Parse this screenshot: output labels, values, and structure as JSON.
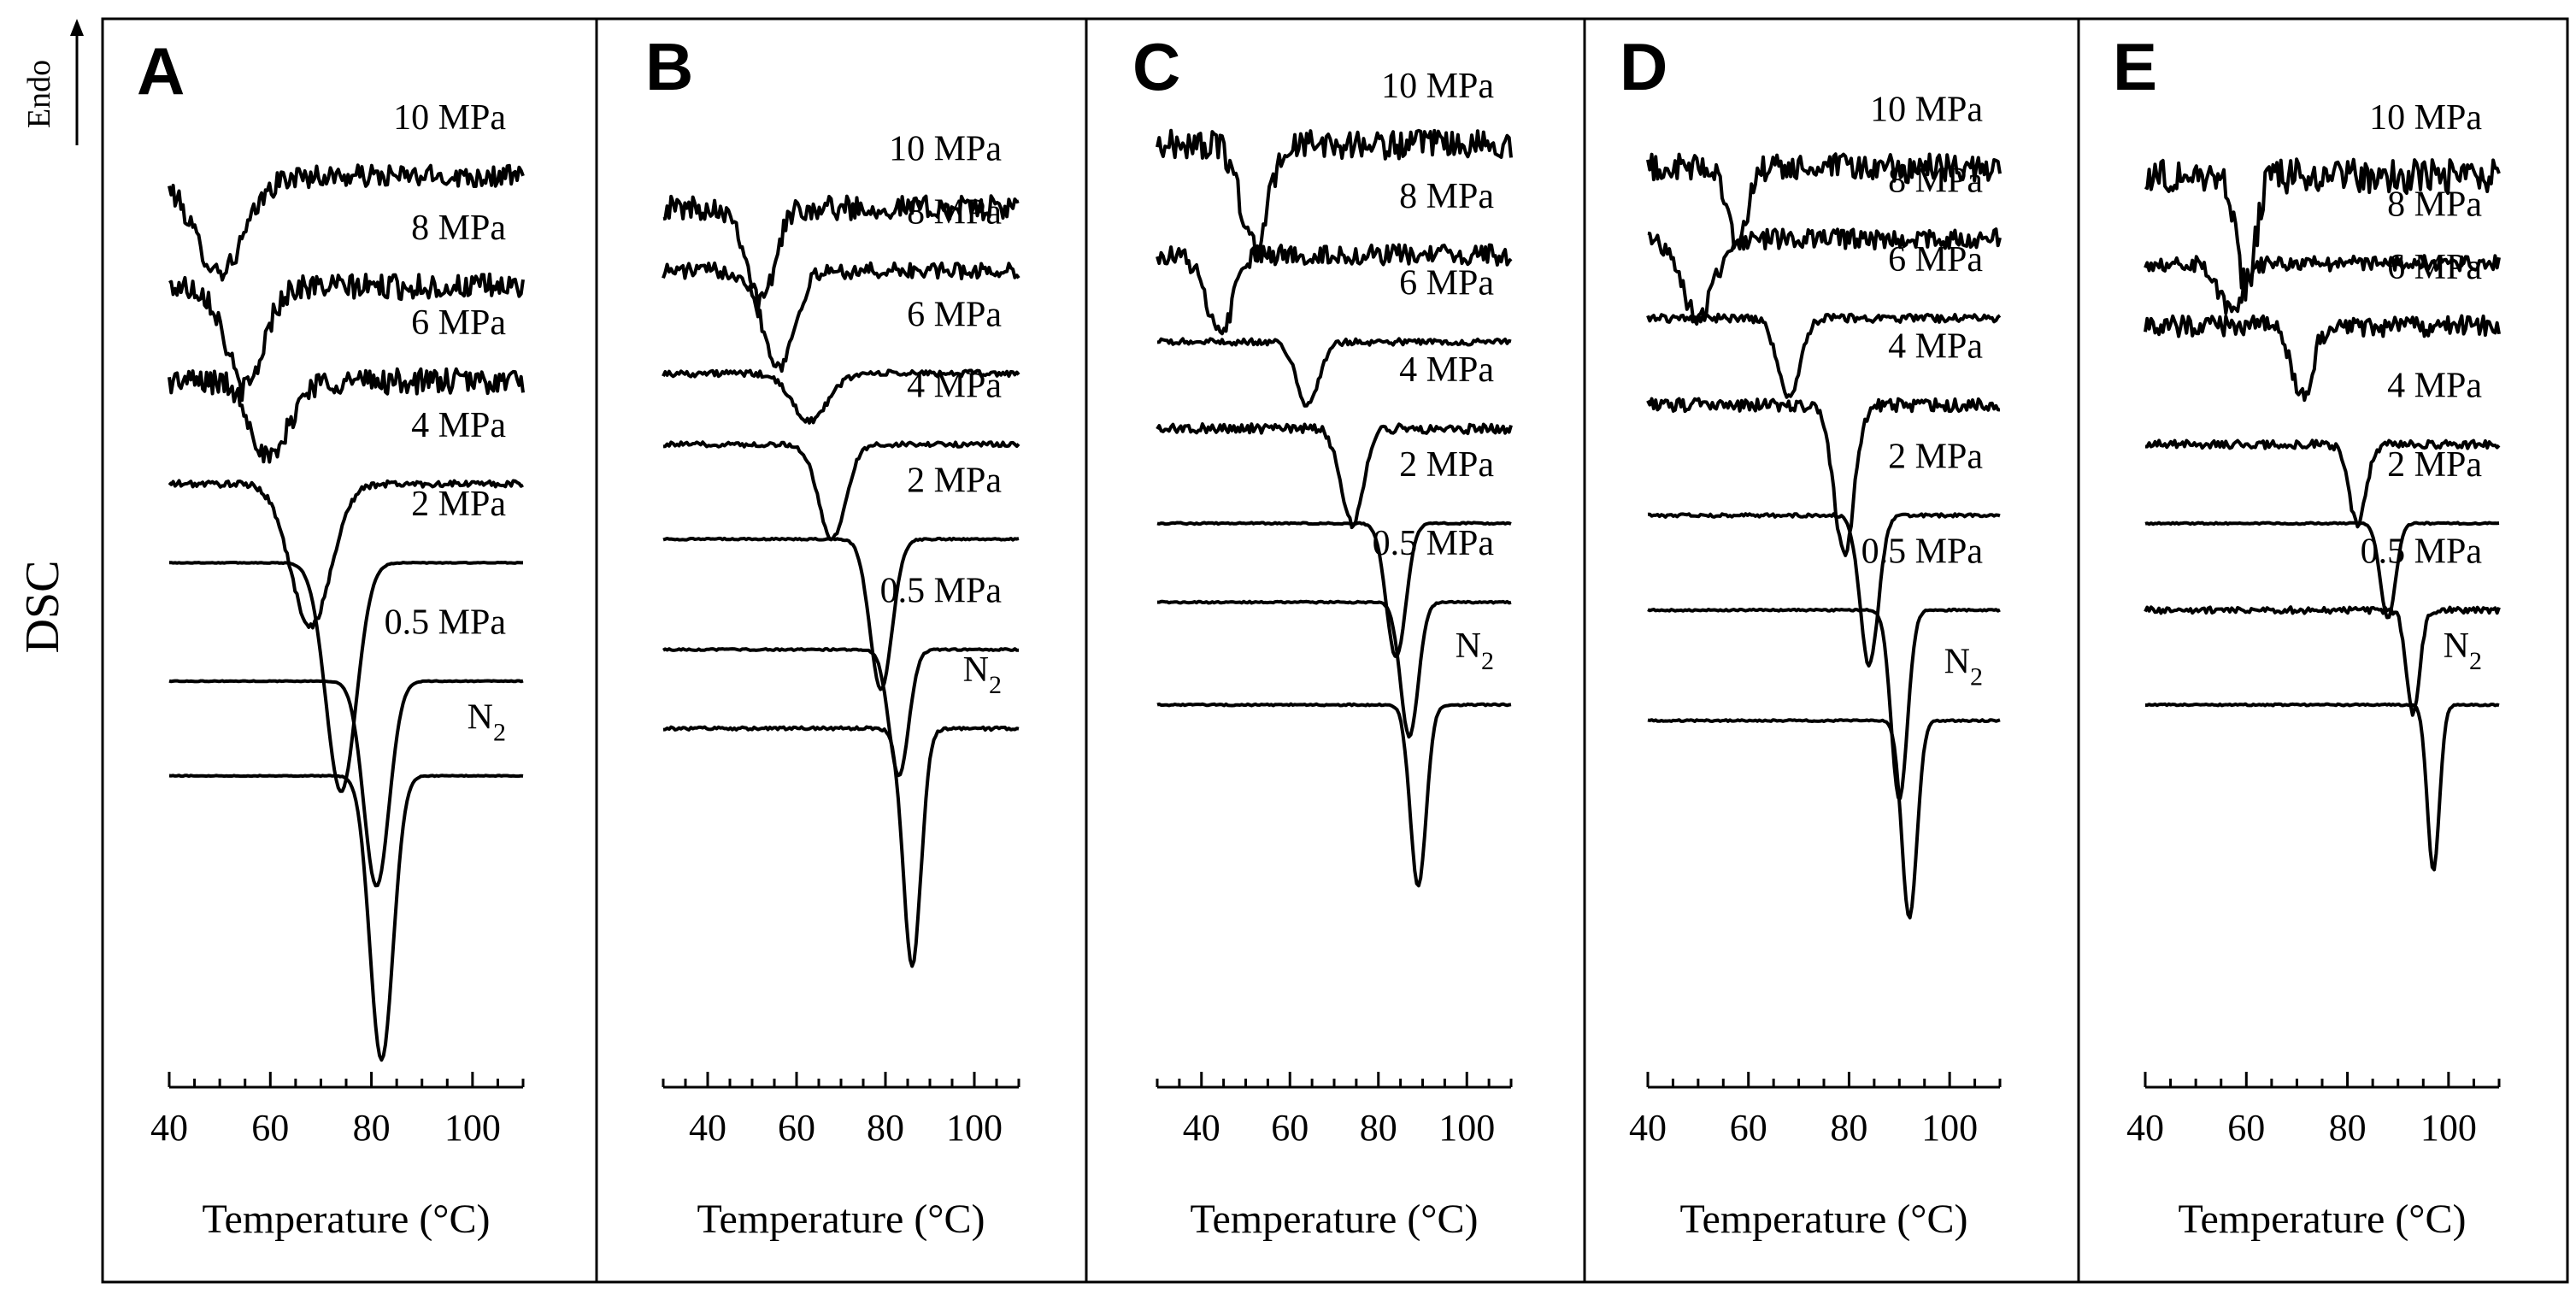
{
  "figure": {
    "y_axis_label": "DSC",
    "endo_label": "Endo",
    "x_axis_label": "Temperature (°C)"
  },
  "chart_data": [
    {
      "type": "line",
      "panel": "A",
      "title": "A",
      "xlabel": "Temperature (°C)",
      "ylabel": "DSC",
      "xlim": [
        40,
        110
      ],
      "xticks": [
        40,
        60,
        80,
        100
      ],
      "y_units": "arbitrary, endo up",
      "series": [
        {
          "name": "10 MPa",
          "baseline": 72,
          "peak_T": 50,
          "peak_depth": 12,
          "peak_width": 5,
          "noise": 1.4
        },
        {
          "name": "8 MPa",
          "baseline": 58,
          "peak_T": 55,
          "peak_depth": 13,
          "peak_width": 3.5,
          "noise": 1.6
        },
        {
          "name": "6 MPa",
          "baseline": 46,
          "peak_T": 60,
          "peak_depth": 10,
          "peak_width": 3.5,
          "noise": 1.6
        },
        {
          "name": "4 MPa",
          "baseline": 33,
          "peak_T": 68,
          "peak_depth": 18,
          "peak_width": 4,
          "noise": 0.4
        },
        {
          "name": "2 MPa",
          "baseline": 23,
          "peak_T": 74,
          "peak_depth": 29,
          "peak_width": 3,
          "noise": 0.05
        },
        {
          "name": "0.5 MPa",
          "baseline": 8,
          "peak_T": 81,
          "peak_depth": 26,
          "peak_width": 2.5,
          "noise": 0.05
        },
        {
          "name": "N2",
          "baseline": -4,
          "peak_T": 82,
          "peak_depth": 36,
          "peak_width": 2.3,
          "noise": 0.05
        }
      ]
    },
    {
      "type": "line",
      "panel": "B",
      "title": "B",
      "xlabel": "Temperature (°C)",
      "ylabel": "DSC",
      "xlim": [
        30,
        110
      ],
      "xticks": [
        40,
        60,
        80,
        100
      ],
      "y_units": "arbitrary, endo up",
      "series": [
        {
          "name": "10 MPa",
          "baseline": 68,
          "peak_T": 52,
          "peak_depth": 12,
          "peak_width": 3,
          "noise": 1.5
        },
        {
          "name": "8 MPa",
          "baseline": 60,
          "peak_T": 56,
          "peak_depth": 12,
          "peak_width": 3.5,
          "noise": 1.0
        },
        {
          "name": "6 MPa",
          "baseline": 47,
          "peak_T": 63,
          "peak_depth": 6,
          "peak_width": 4,
          "noise": 0.4
        },
        {
          "name": "4 MPa",
          "baseline": 38,
          "peak_T": 68,
          "peak_depth": 12,
          "peak_width": 3,
          "noise": 0.3
        },
        {
          "name": "2 MPa",
          "baseline": 26,
          "peak_T": 79,
          "peak_depth": 19,
          "peak_width": 2.5,
          "noise": 0.1
        },
        {
          "name": "0.5 MPa",
          "baseline": 12,
          "peak_T": 83,
          "peak_depth": 16,
          "peak_width": 2.2,
          "noise": 0.1
        },
        {
          "name": "N2",
          "baseline": 2,
          "peak_T": 86,
          "peak_depth": 30,
          "peak_width": 2.0,
          "noise": 0.2
        }
      ]
    },
    {
      "type": "line",
      "panel": "C",
      "title": "C",
      "xlabel": "Temperature (°C)",
      "ylabel": "DSC",
      "xlim": [
        30,
        110
      ],
      "xticks": [
        40,
        60,
        80,
        100
      ],
      "y_units": "arbitrary, endo up",
      "series": [
        {
          "name": "10 MPa",
          "baseline": 76,
          "peak_T": 52,
          "peak_depth": 13,
          "peak_width": 3,
          "noise": 1.8
        },
        {
          "name": "8 MPa",
          "baseline": 62,
          "peak_T": 44,
          "peak_depth": 10,
          "peak_width": 3,
          "noise": 1.3
        },
        {
          "name": "6 MPa",
          "baseline": 51,
          "peak_T": 64,
          "peak_depth": 8,
          "peak_width": 2.5,
          "noise": 0.4
        },
        {
          "name": "4 MPa",
          "baseline": 40,
          "peak_T": 74,
          "peak_depth": 12,
          "peak_width": 2.5,
          "noise": 0.6
        },
        {
          "name": "2 MPa",
          "baseline": 28,
          "peak_T": 84,
          "peak_depth": 17,
          "peak_width": 2.2,
          "noise": 0.1
        },
        {
          "name": "0.5 MPa",
          "baseline": 18,
          "peak_T": 87,
          "peak_depth": 17,
          "peak_width": 2.0,
          "noise": 0.1
        },
        {
          "name": "N2",
          "baseline": 5,
          "peak_T": 89,
          "peak_depth": 23,
          "peak_width": 1.8,
          "noise": 0.1
        }
      ]
    },
    {
      "type": "line",
      "panel": "D",
      "title": "D",
      "xlabel": "Temperature (°C)",
      "ylabel": "DSC",
      "xlim": [
        40,
        110
      ],
      "xticks": [
        40,
        60,
        80,
        100
      ],
      "y_units": "arbitrary, endo up",
      "series": [
        {
          "name": "10 MPa",
          "baseline": 73,
          "peak_T": 58,
          "peak_depth": 10,
          "peak_width": 1.8,
          "noise": 1.8
        },
        {
          "name": "8 MPa",
          "baseline": 64,
          "peak_T": 50,
          "peak_depth": 10,
          "peak_width": 3,
          "noise": 1.3
        },
        {
          "name": "6 MPa",
          "baseline": 54,
          "peak_T": 68,
          "peak_depth": 10,
          "peak_width": 2.2,
          "noise": 0.5
        },
        {
          "name": "4 MPa",
          "baseline": 43,
          "peak_T": 79,
          "peak_depth": 19,
          "peak_width": 2,
          "noise": 0.8
        },
        {
          "name": "2 MPa",
          "baseline": 29,
          "peak_T": 84,
          "peak_depth": 19,
          "peak_width": 1.8,
          "noise": 0.2
        },
        {
          "name": "0.5 MPa",
          "baseline": 17,
          "peak_T": 90,
          "peak_depth": 24,
          "peak_width": 1.6,
          "noise": 0.1
        },
        {
          "name": "N2",
          "baseline": 3,
          "peak_T": 92,
          "peak_depth": 25,
          "peak_width": 1.5,
          "noise": 0.1
        }
      ]
    },
    {
      "type": "line",
      "panel": "E",
      "title": "E",
      "xlabel": "Temperature (°C)",
      "ylabel": "DSC",
      "xlim": [
        40,
        110
      ],
      "xticks": [
        40,
        60,
        80,
        100
      ],
      "y_units": "arbitrary, endo up",
      "series": [
        {
          "name": "10 MPa",
          "baseline": 72,
          "peak_T": 60,
          "peak_depth": 14,
          "peak_width": 1.8,
          "noise": 2.2
        },
        {
          "name": "8 MPa",
          "baseline": 61,
          "peak_T": 57,
          "peak_depth": 6,
          "peak_width": 2.5,
          "noise": 1.0
        },
        {
          "name": "6 MPa",
          "baseline": 53,
          "peak_T": 71,
          "peak_depth": 9,
          "peak_width": 2,
          "noise": 1.3
        },
        {
          "name": "4 MPa",
          "baseline": 38,
          "peak_T": 82,
          "peak_depth": 10,
          "peak_width": 1.7,
          "noise": 0.5
        },
        {
          "name": "2 MPa",
          "baseline": 28,
          "peak_T": 88,
          "peak_depth": 12,
          "peak_width": 1.5,
          "noise": 0.1
        },
        {
          "name": "0.5 MPa",
          "baseline": 17,
          "peak_T": 93,
          "peak_depth": 13,
          "peak_width": 1.3,
          "noise": 0.4
        },
        {
          "name": "N2",
          "baseline": 5,
          "peak_T": 97,
          "peak_depth": 21,
          "peak_width": 1.2,
          "noise": 0.1
        }
      ]
    }
  ]
}
